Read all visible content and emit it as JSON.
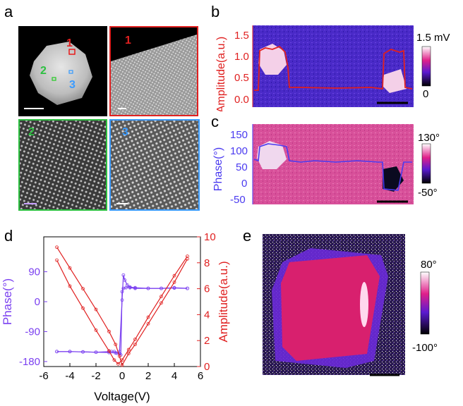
{
  "panels": {
    "a": {
      "label": "a",
      "region_labels": [
        "1",
        "2",
        "3"
      ]
    },
    "b": {
      "label": "b",
      "ylabel": "Amplitude(a.u.)",
      "yticks": [
        "1.5",
        "1.0",
        "0.5",
        "0.0"
      ],
      "cbar_max": "1.5 mV",
      "cbar_min": "0"
    },
    "c": {
      "label": "c",
      "ylabel": "Phase(°)",
      "yticks": [
        "150",
        "100",
        "50",
        "0",
        "-50"
      ],
      "cbar_max": "130°",
      "cbar_min": "-50°"
    },
    "d": {
      "label": "d",
      "xlabel": "Voltage(V)",
      "ylabel_left": "Phase(°)",
      "ylabel_right": "Amplitude(a.u.)",
      "xticks": [
        "-6",
        "-4",
        "-2",
        "0",
        "2",
        "4",
        "6"
      ],
      "yticks_left": [
        "90",
        "0",
        "-90",
        "-180"
      ],
      "yticks_right": [
        "10",
        "8",
        "6",
        "4",
        "2",
        "0"
      ]
    },
    "e": {
      "label": "e",
      "cbar_max": "80°",
      "cbar_min": "-100°"
    }
  },
  "chart_data": {
    "type": "line",
    "xlabel": "Voltage(V)",
    "ylabel": "Phase(°)",
    "y2label": "Amplitude(a.u.)",
    "xlim": [
      -6,
      6
    ],
    "ylim": [
      -195,
      195
    ],
    "y2lim": [
      0,
      10
    ],
    "series": [
      {
        "axis": "left",
        "color": "#7a3ff0",
        "x": [
          -5,
          -4,
          -3,
          -2,
          -1,
          -0.5,
          -0.2,
          -0.1,
          0.0,
          0.1,
          0.3,
          0.6,
          1,
          2,
          3,
          4,
          5
        ],
        "y": [
          -150,
          -150,
          -151,
          -152,
          -153,
          -154,
          -156,
          -160,
          30,
          40,
          42,
          44,
          42,
          40,
          40,
          42,
          40
        ]
      },
      {
        "axis": "left",
        "color": "#7a3ff0",
        "x": [
          5,
          4,
          3,
          2,
          1,
          0.6,
          0.4,
          0.2,
          0.1,
          0.0,
          -0.2,
          -0.4,
          -0.6,
          -0.8,
          -1,
          -2,
          -3,
          -4,
          -5
        ],
        "y": [
          40,
          41,
          40,
          40,
          40,
          42,
          50,
          65,
          80,
          5,
          -150,
          -155,
          -150,
          -150,
          -150,
          -152,
          -151,
          -150,
          -150
        ]
      },
      {
        "axis": "right",
        "color": "#e02020",
        "x": [
          -5,
          -4,
          -3,
          -2,
          -1,
          -0.5,
          -0.2,
          0.0,
          0.5,
          1,
          2,
          3,
          4,
          5
        ],
        "y": [
          9.2,
          7.6,
          6.0,
          4.4,
          2.7,
          1.7,
          0.8,
          0.1,
          1.0,
          1.7,
          3.3,
          4.9,
          6.5,
          8.3
        ]
      },
      {
        "axis": "right",
        "color": "#e02020",
        "x": [
          5,
          4,
          3,
          2,
          1,
          0.5,
          0.0,
          -0.3,
          -0.6,
          -1,
          -2,
          -3,
          -4,
          -5
        ],
        "y": [
          8.5,
          7.0,
          5.4,
          3.8,
          2.1,
          1.3,
          0.5,
          0.2,
          0.5,
          1.2,
          2.8,
          4.5,
          6.2,
          8.2
        ]
      }
    ]
  }
}
